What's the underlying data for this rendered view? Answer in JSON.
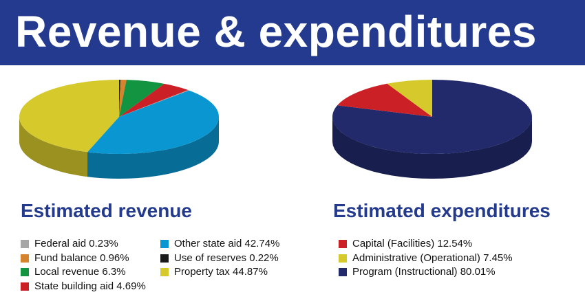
{
  "banner": {
    "title": "Revenue & expenditures"
  },
  "chart_data": [
    {
      "type": "pie",
      "title": "Estimated revenue",
      "slices": [
        {
          "label": "Federal aid",
          "value": 0.23,
          "display": "Federal aid 0.23%",
          "color": "#a6a6a6"
        },
        {
          "label": "Fund balance",
          "value": 0.96,
          "display": "Fund balance 0.96%",
          "color": "#d5832c"
        },
        {
          "label": "Local revenue",
          "value": 6.3,
          "display": "Local revenue 6.3%",
          "color": "#129441"
        },
        {
          "label": "State building aid",
          "value": 4.69,
          "display": "State building aid 4.69%",
          "color": "#cc2027"
        },
        {
          "label": "Other state aid",
          "value": 42.74,
          "display": "Other state aid 42.74%",
          "color": "#0a97d1"
        },
        {
          "label": "Use of reserves",
          "value": 0.22,
          "display": "Use of reserves 0.22%",
          "color": "#1a1a1a"
        },
        {
          "label": "Property tax",
          "value": 44.87,
          "display": "Property tax 44.87%",
          "color": "#d6c92c"
        }
      ],
      "pie_order": [
        "Use of reserves",
        "Fund balance",
        "Local revenue",
        "State building aid",
        "Federal aid",
        "Other state aid",
        "Property tax"
      ],
      "legend_columns": [
        [
          "Federal aid",
          "Fund balance",
          "Local revenue",
          "State building aid"
        ],
        [
          "Other state aid",
          "Use of reserves",
          "Property tax"
        ]
      ]
    },
    {
      "type": "pie",
      "title": "Estimated expenditures",
      "slices": [
        {
          "label": "Capital (Facilities)",
          "value": 12.54,
          "display": "Capital (Facilities) 12.54%",
          "color": "#cc2027"
        },
        {
          "label": "Administrative (Operational)",
          "value": 7.45,
          "display": "Administrative (Operational) 7.45%",
          "color": "#d6c92c"
        },
        {
          "label": "Program (Instructional)",
          "value": 80.01,
          "display": "Program (Instructional) 80.01%",
          "color": "#222a6b"
        }
      ],
      "pie_order": [
        "Program (Instructional)",
        "Capital (Facilities)",
        "Administrative (Operational)"
      ],
      "legend_columns": [
        [
          "Capital (Facilities)",
          "Administrative (Operational)",
          "Program (Instructional)"
        ]
      ]
    }
  ]
}
